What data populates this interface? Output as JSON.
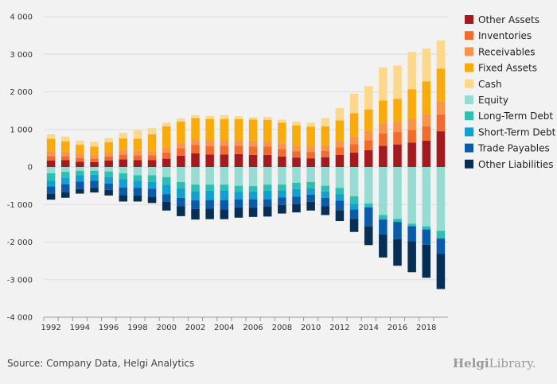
{
  "footer": {
    "source": "Source: Company Data, Helgi Analytics",
    "brand_bold": "Helgi",
    "brand_rest": "Library."
  },
  "colors": {
    "grid": "#dcdcdc",
    "axis": "#999999"
  },
  "chart_data": {
    "type": "bar",
    "stacked": true,
    "legend_position": "right",
    "grid": true,
    "ylim": [
      -4000,
      4000
    ],
    "y_ticks": [
      4000,
      3000,
      2000,
      1000,
      0,
      -1000,
      -2000,
      -3000,
      -4000
    ],
    "y_tick_labels": [
      "4 000",
      "3 000",
      "2 000",
      "1 000",
      "0",
      "-1 000",
      "-2 000",
      "-3 000",
      "-4 000"
    ],
    "categories": [
      "1992",
      "1993",
      "1994",
      "1995",
      "1996",
      "1997",
      "1998",
      "1999",
      "2000",
      "2001",
      "2002",
      "2003",
      "2004",
      "2005",
      "2006",
      "2007",
      "2008",
      "2009",
      "2010",
      "2011",
      "2012",
      "2013",
      "2014",
      "2015",
      "2016",
      "2017",
      "2018",
      "2019"
    ],
    "x_tick_labels": [
      "1992",
      "1994",
      "1996",
      "1998",
      "2000",
      "2002",
      "2004",
      "2006",
      "2008",
      "2010",
      "2012",
      "2014",
      "2016",
      "2018"
    ],
    "series": [
      {
        "name": "Other Assets",
        "color": "#a31a1f",
        "values": [
          170,
          180,
          140,
          130,
          170,
          200,
          180,
          180,
          220,
          300,
          360,
          330,
          330,
          340,
          320,
          320,
          280,
          250,
          230,
          260,
          320,
          380,
          450,
          560,
          600,
          650,
          700,
          950
        ]
      },
      {
        "name": "Inventories",
        "color": "#f26b2e",
        "values": [
          120,
          110,
          100,
          90,
          110,
          130,
          130,
          130,
          160,
          200,
          230,
          220,
          230,
          220,
          220,
          220,
          200,
          170,
          170,
          170,
          200,
          230,
          260,
          330,
          330,
          340,
          380,
          450
        ]
      },
      {
        "name": "Receivables",
        "color": "#f9954b",
        "values": [
          130,
          120,
          110,
          100,
          110,
          130,
          120,
          120,
          140,
          150,
          150,
          160,
          150,
          150,
          160,
          150,
          150,
          140,
          150,
          150,
          160,
          200,
          250,
          280,
          280,
          300,
          320,
          350
        ]
      },
      {
        "name": "Fixed Assets",
        "color": "#f7ab0c",
        "values": [
          330,
          270,
          240,
          220,
          270,
          300,
          320,
          440,
          560,
          560,
          560,
          560,
          560,
          560,
          560,
          560,
          550,
          540,
          520,
          500,
          560,
          620,
          570,
          600,
          600,
          780,
          880,
          870
        ]
      },
      {
        "name": "Cash",
        "color": "#fcd88e",
        "values": [
          120,
          130,
          110,
          130,
          110,
          150,
          230,
          170,
          100,
          80,
          80,
          90,
          110,
          80,
          60,
          80,
          80,
          110,
          110,
          220,
          330,
          520,
          620,
          880,
          890,
          990,
          870,
          750
        ]
      },
      {
        "name": "Equity",
        "color": "#97dbd3",
        "values": [
          -170,
          -130,
          -100,
          -100,
          -120,
          -170,
          -220,
          -220,
          -270,
          -400,
          -470,
          -470,
          -470,
          -500,
          -510,
          -470,
          -470,
          -420,
          -400,
          -500,
          -560,
          -780,
          -970,
          -1280,
          -1380,
          -1510,
          -1580,
          -1700
        ]
      },
      {
        "name": "Long-Term Debt",
        "color": "#2ebfb0",
        "values": [
          -200,
          -160,
          -120,
          -110,
          -150,
          -150,
          -150,
          -180,
          -200,
          -170,
          -180,
          -160,
          -150,
          -160,
          -140,
          -160,
          -150,
          -170,
          -170,
          -150,
          -170,
          -200,
          -90,
          -100,
          -70,
          -50,
          -70,
          -180
        ]
      },
      {
        "name": "Short-Term Debt",
        "color": "#13a0d0",
        "values": [
          -150,
          -170,
          -170,
          -160,
          -170,
          -230,
          -190,
          -180,
          -260,
          -250,
          -240,
          -250,
          -260,
          -200,
          -210,
          -230,
          -190,
          -200,
          -170,
          -170,
          -170,
          -150,
          -20,
          -20,
          -20,
          -20,
          -20,
          -30
        ]
      },
      {
        "name": "Trade Payables",
        "color": "#0a5ca8",
        "values": [
          -200,
          -210,
          -200,
          -190,
          -170,
          -200,
          -200,
          -210,
          -200,
          -220,
          -230,
          -230,
          -250,
          -230,
          -230,
          -190,
          -200,
          -200,
          -190,
          -220,
          -250,
          -250,
          -500,
          -400,
          -450,
          -400,
          -400,
          -400
        ]
      },
      {
        "name": "Other Liabilities",
        "color": "#072f55",
        "values": [
          -150,
          -150,
          -120,
          -120,
          -150,
          -170,
          -160,
          -170,
          -230,
          -270,
          -280,
          -280,
          -260,
          -260,
          -240,
          -270,
          -230,
          -220,
          -230,
          -240,
          -290,
          -350,
          -500,
          -610,
          -710,
          -820,
          -880,
          -940
        ]
      }
    ]
  }
}
